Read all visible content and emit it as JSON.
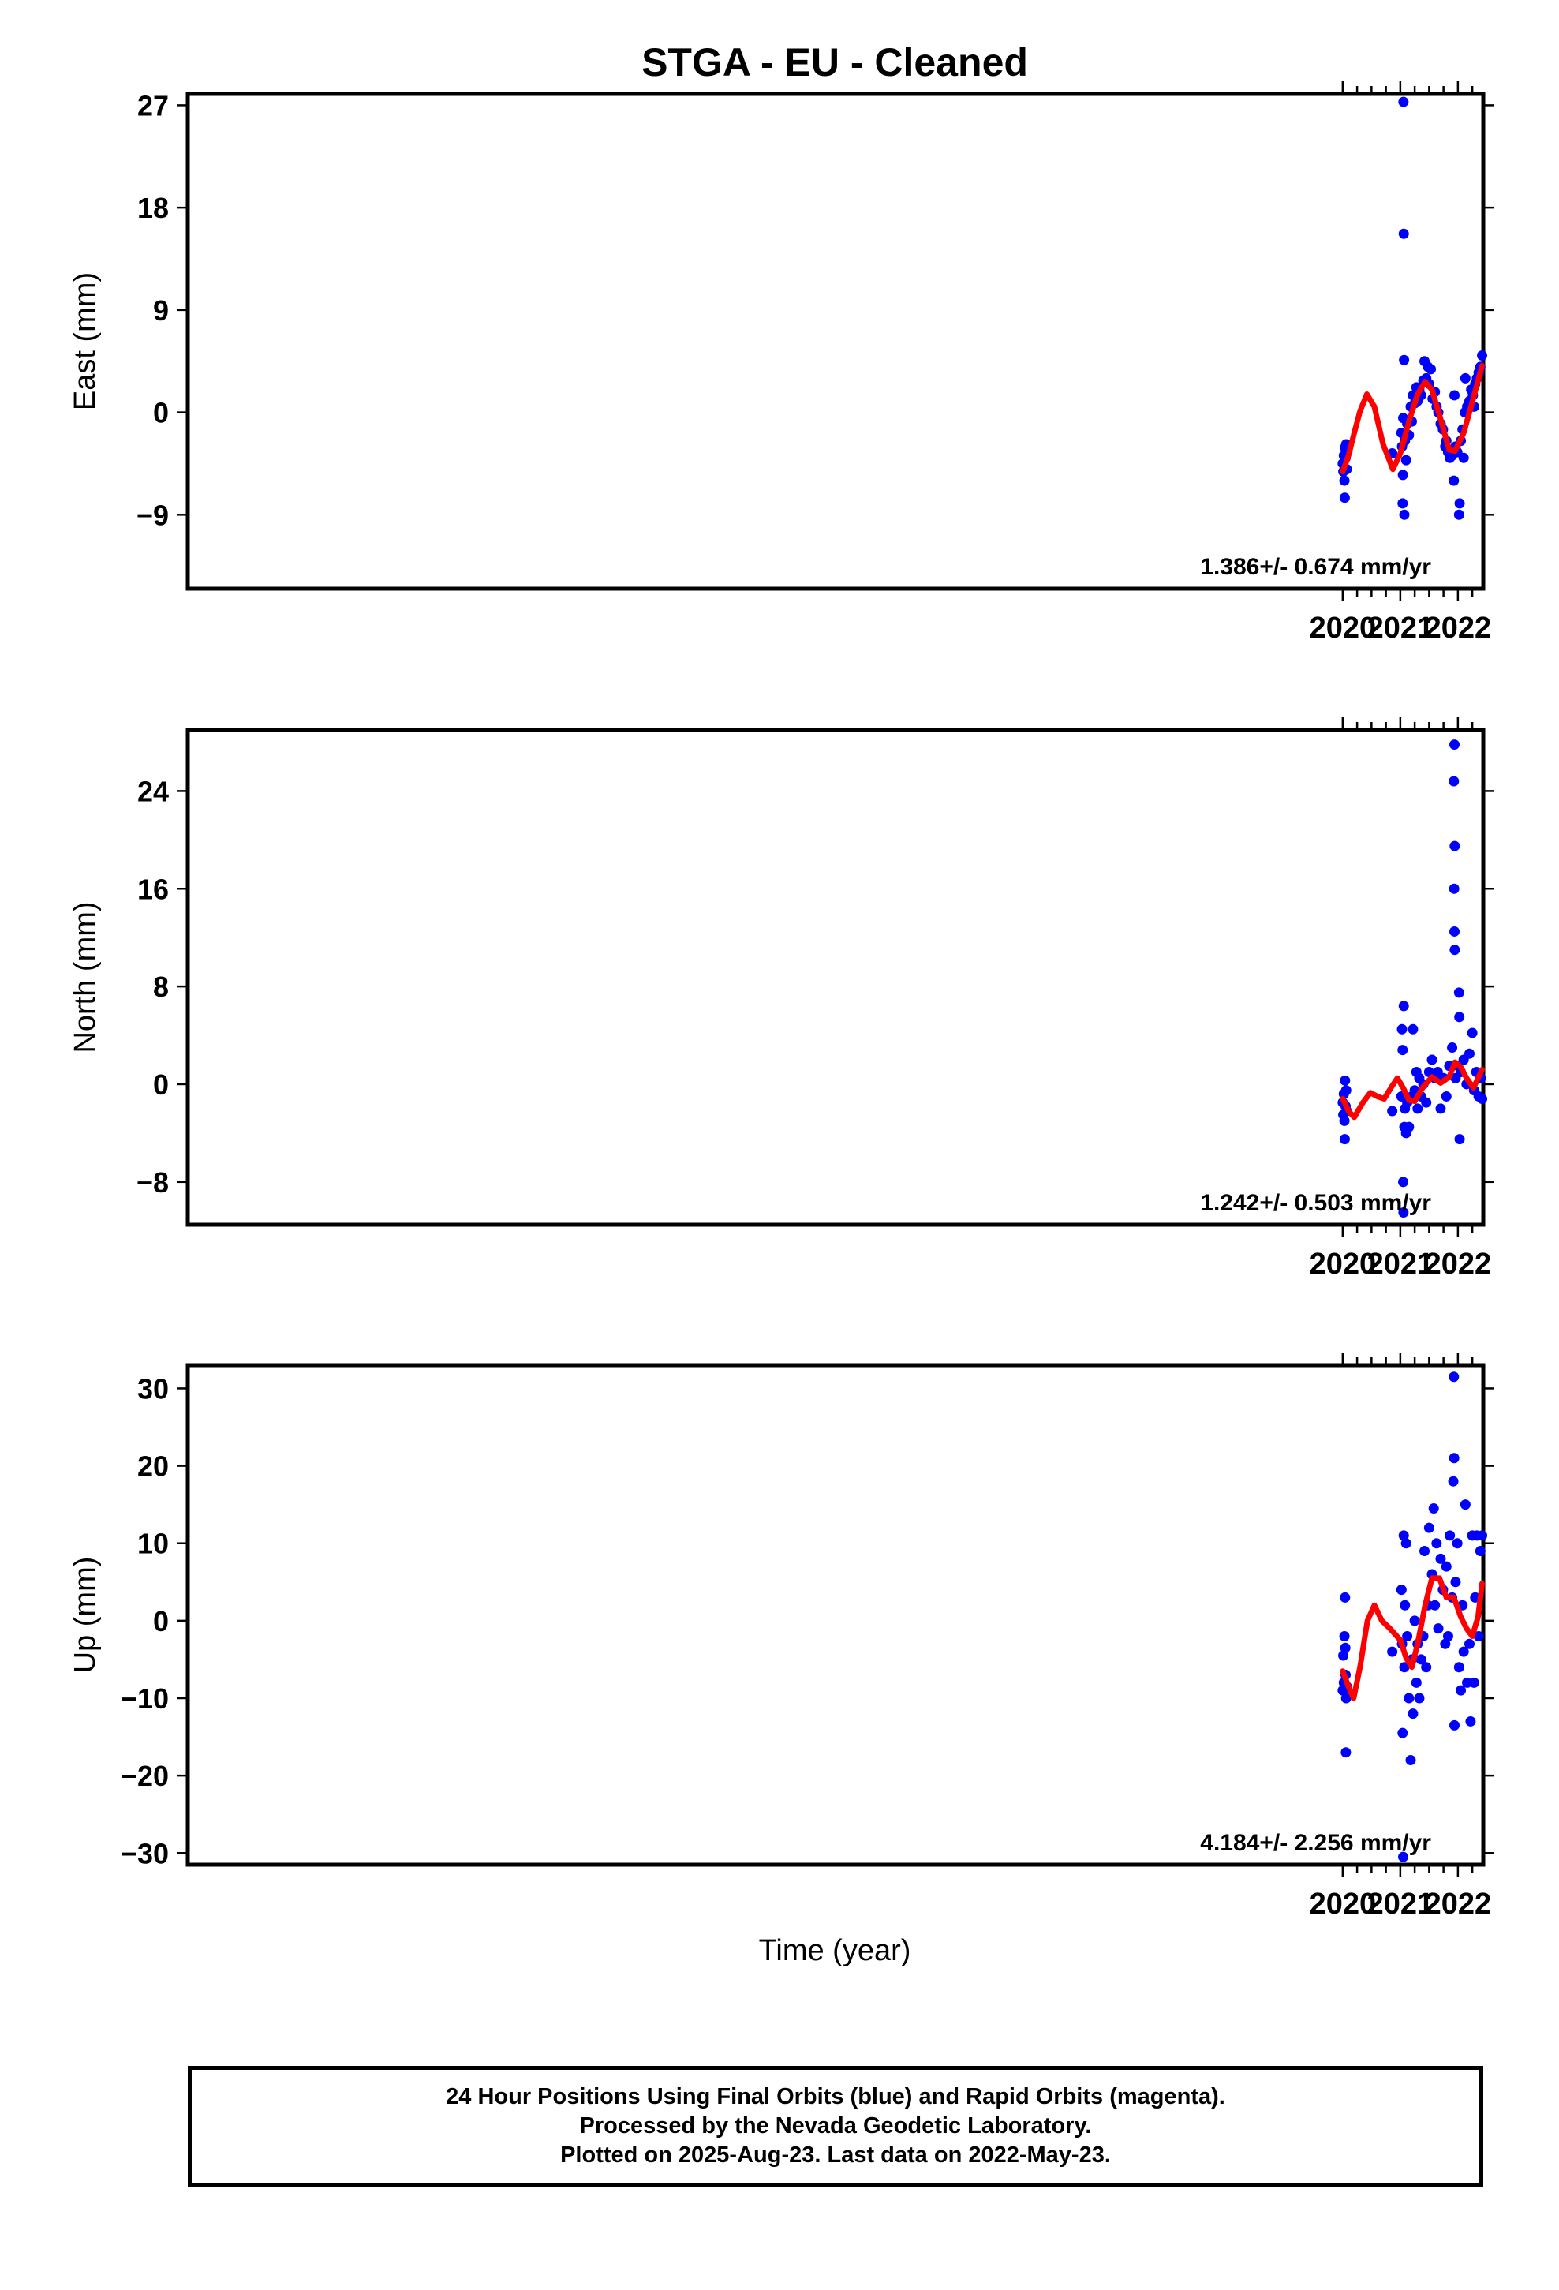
{
  "title": "STGA  - EU - Cleaned",
  "xlabel": "Time (year)",
  "footer": {
    "line1": "24 Hour Positions Using Final Orbits (blue) and Rapid Orbits (magenta).",
    "line2": "Processed by the Nevada Geodetic Laboratory.",
    "line3": "Plotted on 2025-Aug-23. Last data on 2022-May-23."
  },
  "colors": {
    "points": "#0000ff",
    "fit": "#ff0000",
    "frame": "#000000"
  },
  "chart_data": [
    {
      "type": "scatter",
      "ylabel": "East (mm)",
      "rate_label": "1.386+/- 0.674 mm/yr",
      "xlim": [
        1999.95,
        2022.44
      ],
      "ylim": [
        -15.5,
        28
      ],
      "yticks": [
        27,
        18,
        9,
        0,
        -9
      ],
      "xticks": [
        2020,
        2021,
        2022
      ],
      "points": [
        [
          2020.0,
          -4.5
        ],
        [
          2020.01,
          -5.2
        ],
        [
          2020.02,
          -3.8
        ],
        [
          2020.03,
          -6.0
        ],
        [
          2020.035,
          -7.5
        ],
        [
          2020.04,
          -3.1
        ],
        [
          2020.05,
          -4.0
        ],
        [
          2020.06,
          -2.8
        ],
        [
          2020.07,
          -5.0
        ],
        [
          2020.08,
          -3.5
        ],
        [
          2020.86,
          -3.6
        ],
        [
          2021.02,
          -1.8
        ],
        [
          2021.03,
          -3.0
        ],
        [
          2021.04,
          -8.0
        ],
        [
          2021.045,
          -5.5
        ],
        [
          2021.05,
          -0.5
        ],
        [
          2021.055,
          27.3
        ],
        [
          2021.06,
          15.7
        ],
        [
          2021.065,
          4.6
        ],
        [
          2021.07,
          -9.0
        ],
        [
          2021.08,
          -2.5
        ],
        [
          2021.1,
          -4.2
        ],
        [
          2021.12,
          -1.0
        ],
        [
          2021.15,
          -2.0
        ],
        [
          2021.18,
          0.5
        ],
        [
          2021.2,
          -0.8
        ],
        [
          2021.22,
          1.5
        ],
        [
          2021.25,
          0.8
        ],
        [
          2021.28,
          2.2
        ],
        [
          2021.3,
          1.0
        ],
        [
          2021.33,
          2.0
        ],
        [
          2021.36,
          1.5
        ],
        [
          2021.4,
          2.8
        ],
        [
          2021.42,
          4.5
        ],
        [
          2021.45,
          3.0
        ],
        [
          2021.48,
          4.0
        ],
        [
          2021.5,
          2.5
        ],
        [
          2021.53,
          3.8
        ],
        [
          2021.56,
          1.2
        ],
        [
          2021.6,
          1.8
        ],
        [
          2021.63,
          0.5
        ],
        [
          2021.66,
          0.0
        ],
        [
          2021.7,
          -1.0
        ],
        [
          2021.74,
          -1.5
        ],
        [
          2021.78,
          -3.0
        ],
        [
          2021.8,
          -2.5
        ],
        [
          2021.83,
          -3.5
        ],
        [
          2021.86,
          -4.0
        ],
        [
          2021.9,
          -3.8
        ],
        [
          2021.93,
          -6.0
        ],
        [
          2021.94,
          1.5
        ],
        [
          2021.96,
          -3.0
        ],
        [
          2021.99,
          -3.5
        ],
        [
          2022.02,
          -9.0
        ],
        [
          2022.03,
          -8.0
        ],
        [
          2022.05,
          -2.5
        ],
        [
          2022.08,
          -1.5
        ],
        [
          2022.1,
          -4.0
        ],
        [
          2022.12,
          0.0
        ],
        [
          2022.13,
          3.0
        ],
        [
          2022.16,
          0.5
        ],
        [
          2022.2,
          1.0
        ],
        [
          2022.23,
          2.0
        ],
        [
          2022.26,
          1.5
        ],
        [
          2022.28,
          0.5
        ],
        [
          2022.3,
          2.5
        ],
        [
          2022.33,
          3.0
        ],
        [
          2022.36,
          3.5
        ],
        [
          2022.39,
          4.0
        ],
        [
          2022.42,
          5.0
        ]
      ],
      "fit": {
        "x": [
          2020.0,
          2020.1,
          2020.2,
          2020.3,
          2020.42,
          2020.55,
          2020.7,
          2020.87,
          2021.0,
          2021.15,
          2021.3,
          2021.43,
          2021.55,
          2021.7,
          2021.85,
          2021.95,
          2022.1,
          2022.25,
          2022.42
        ],
        "y": [
          -5.2,
          -3.8,
          -1.8,
          0.1,
          1.6,
          0.5,
          -2.8,
          -5.0,
          -3.6,
          -0.8,
          1.6,
          2.7,
          2.0,
          -0.6,
          -3.3,
          -3.4,
          -1.8,
          0.9,
          4.1
        ]
      }
    },
    {
      "type": "scatter",
      "ylabel": "North (mm)",
      "rate_label": "1.242+/- 0.503 mm/yr",
      "xlim": [
        1999.95,
        2022.44
      ],
      "ylim": [
        -11.5,
        29
      ],
      "yticks": [
        24,
        16,
        8,
        0,
        -8
      ],
      "xticks": [
        2020,
        2021,
        2022
      ],
      "points": [
        [
          2020.0,
          -1.5
        ],
        [
          2020.01,
          -2.5
        ],
        [
          2020.02,
          -0.8
        ],
        [
          2020.03,
          -3.0
        ],
        [
          2020.035,
          -4.5
        ],
        [
          2020.04,
          0.3
        ],
        [
          2020.05,
          -1.8
        ],
        [
          2020.06,
          -0.5
        ],
        [
          2020.07,
          -2.2
        ],
        [
          2020.86,
          -2.2
        ],
        [
          2021.02,
          -1.0
        ],
        [
          2021.03,
          4.5
        ],
        [
          2021.04,
          2.8
        ],
        [
          2021.05,
          -8.0
        ],
        [
          2021.055,
          -10.5
        ],
        [
          2021.06,
          6.4
        ],
        [
          2021.07,
          -3.5
        ],
        [
          2021.08,
          -2.0
        ],
        [
          2021.1,
          -4.0
        ],
        [
          2021.12,
          -1.5
        ],
        [
          2021.15,
          -3.5
        ],
        [
          2021.2,
          -1.0
        ],
        [
          2021.22,
          4.5
        ],
        [
          2021.25,
          -0.5
        ],
        [
          2021.28,
          1.0
        ],
        [
          2021.3,
          -2.0
        ],
        [
          2021.33,
          0.5
        ],
        [
          2021.36,
          -1.0
        ],
        [
          2021.4,
          0.0
        ],
        [
          2021.45,
          -1.5
        ],
        [
          2021.5,
          1.0
        ],
        [
          2021.55,
          2.0
        ],
        [
          2021.6,
          0.5
        ],
        [
          2021.65,
          1.0
        ],
        [
          2021.7,
          -2.0
        ],
        [
          2021.75,
          0.5
        ],
        [
          2021.8,
          -1.0
        ],
        [
          2021.85,
          1.5
        ],
        [
          2021.9,
          3.0
        ],
        [
          2021.93,
          24.8
        ],
        [
          2021.94,
          27.8
        ],
        [
          2021.945,
          19.5
        ],
        [
          2021.935,
          16.0
        ],
        [
          2021.94,
          12.5
        ],
        [
          2021.945,
          11.0
        ],
        [
          2021.96,
          0.5
        ],
        [
          2022.0,
          1.5
        ],
        [
          2022.02,
          7.5
        ],
        [
          2022.025,
          5.5
        ],
        [
          2022.03,
          -4.5
        ],
        [
          2022.05,
          1.0
        ],
        [
          2022.1,
          2.0
        ],
        [
          2022.15,
          0.0
        ],
        [
          2022.2,
          2.5
        ],
        [
          2022.25,
          4.2
        ],
        [
          2022.28,
          -0.5
        ],
        [
          2022.32,
          1.0
        ],
        [
          2022.36,
          -1.0
        ],
        [
          2022.4,
          0.5
        ],
        [
          2022.42,
          -1.2
        ]
      ],
      "fit": {
        "x": [
          2020.0,
          2020.1,
          2020.2,
          2020.35,
          2020.48,
          2020.6,
          2020.72,
          2020.85,
          2020.95,
          2021.05,
          2021.15,
          2021.25,
          2021.4,
          2021.55,
          2021.7,
          2021.85,
          2021.95,
          2022.05,
          2022.15,
          2022.27,
          2022.42
        ],
        "y": [
          -1.2,
          -2.2,
          -2.7,
          -1.5,
          -0.7,
          -1.0,
          -1.2,
          -0.2,
          0.5,
          -0.3,
          -1.3,
          -1.4,
          -0.2,
          0.6,
          0.1,
          0.6,
          1.8,
          1.4,
          0.5,
          -0.3,
          1.2
        ]
      }
    },
    {
      "type": "scatter",
      "ylabel": "Up (mm)",
      "rate_label": "4.184+/- 2.256 mm/yr",
      "xlim": [
        1999.95,
        2022.44
      ],
      "ylim": [
        -31.5,
        33
      ],
      "yticks": [
        30,
        20,
        10,
        0,
        -10,
        -20,
        -30
      ],
      "xticks": [
        2020,
        2021,
        2022
      ],
      "points": [
        [
          2020.0,
          -9.0
        ],
        [
          2020.01,
          -4.5
        ],
        [
          2020.02,
          -8.0
        ],
        [
          2020.03,
          -2.0
        ],
        [
          2020.04,
          3.0
        ],
        [
          2020.045,
          -3.5
        ],
        [
          2020.05,
          -7.0
        ],
        [
          2020.055,
          -17.0
        ],
        [
          2020.06,
          -10.0
        ],
        [
          2020.07,
          -8.5
        ],
        [
          2020.86,
          -4.0
        ],
        [
          2021.02,
          4.0
        ],
        [
          2021.03,
          -3.0
        ],
        [
          2021.04,
          -14.5
        ],
        [
          2021.05,
          -30.5
        ],
        [
          2021.06,
          11.0
        ],
        [
          2021.07,
          -6.0
        ],
        [
          2021.08,
          2.0
        ],
        [
          2021.1,
          10.0
        ],
        [
          2021.12,
          -2.0
        ],
        [
          2021.15,
          -10.0
        ],
        [
          2021.18,
          -18.0
        ],
        [
          2021.2,
          -5.0
        ],
        [
          2021.22,
          -12.0
        ],
        [
          2021.25,
          0.0
        ],
        [
          2021.28,
          -8.0
        ],
        [
          2021.3,
          -3.0
        ],
        [
          2021.33,
          -10.0
        ],
        [
          2021.36,
          -5.0
        ],
        [
          2021.4,
          -2.0
        ],
        [
          2021.42,
          9.0
        ],
        [
          2021.45,
          -6.0
        ],
        [
          2021.48,
          2.0
        ],
        [
          2021.5,
          12.0
        ],
        [
          2021.55,
          6.0
        ],
        [
          2021.58,
          14.5
        ],
        [
          2021.6,
          2.0
        ],
        [
          2021.63,
          10.0
        ],
        [
          2021.66,
          -1.0
        ],
        [
          2021.7,
          8.0
        ],
        [
          2021.74,
          4.0
        ],
        [
          2021.78,
          -3.0
        ],
        [
          2021.8,
          7.0
        ],
        [
          2021.83,
          -2.0
        ],
        [
          2021.86,
          11.0
        ],
        [
          2021.9,
          3.0
        ],
        [
          2021.92,
          18.0
        ],
        [
          2021.93,
          31.5
        ],
        [
          2021.935,
          21.0
        ],
        [
          2021.94,
          -13.5
        ],
        [
          2021.96,
          5.0
        ],
        [
          2021.99,
          10.0
        ],
        [
          2022.02,
          -6.0
        ],
        [
          2022.05,
          -9.0
        ],
        [
          2022.08,
          2.0
        ],
        [
          2022.1,
          -4.0
        ],
        [
          2022.13,
          15.0
        ],
        [
          2022.16,
          -8.0
        ],
        [
          2022.2,
          -3.0
        ],
        [
          2022.22,
          -13.0
        ],
        [
          2022.25,
          11.0
        ],
        [
          2022.28,
          -8.0
        ],
        [
          2022.3,
          3.0
        ],
        [
          2022.33,
          11.0
        ],
        [
          2022.36,
          -2.0
        ],
        [
          2022.39,
          9.0
        ],
        [
          2022.42,
          11.0
        ]
      ],
      "fit": {
        "x": [
          2020.0,
          2020.1,
          2020.19,
          2020.3,
          2020.43,
          2020.55,
          2020.68,
          2020.82,
          2021.0,
          2021.1,
          2021.2,
          2021.3,
          2021.43,
          2021.55,
          2021.68,
          2021.8,
          2021.93,
          2022.05,
          2022.15,
          2022.25,
          2022.35,
          2022.42
        ],
        "y": [
          -6.5,
          -8.5,
          -10.0,
          -6.0,
          0.0,
          2.0,
          0.0,
          -1.0,
          -2.5,
          -4.8,
          -6.0,
          -3.0,
          2.0,
          5.5,
          5.5,
          3.0,
          3.0,
          0.5,
          -1.0,
          -2.0,
          0.5,
          4.8
        ]
      }
    }
  ]
}
